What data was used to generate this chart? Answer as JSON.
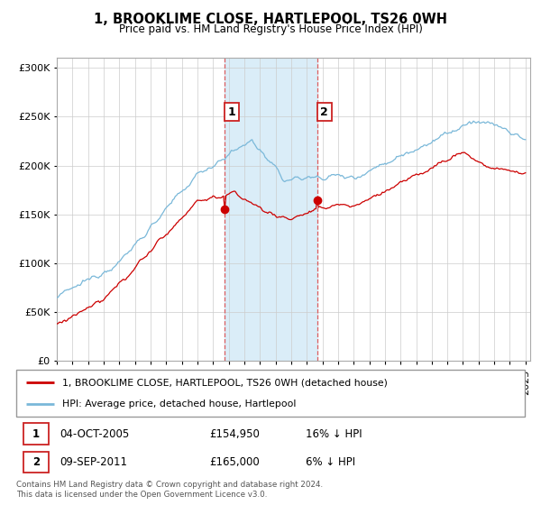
{
  "title": "1, BROOKLIME CLOSE, HARTLEPOOL, TS26 0WH",
  "subtitle": "Price paid vs. HM Land Registry's House Price Index (HPI)",
  "yticks": [
    0,
    50000,
    100000,
    150000,
    200000,
    250000,
    300000
  ],
  "ytick_labels": [
    "£0",
    "£50K",
    "£100K",
    "£150K",
    "£200K",
    "£250K",
    "£300K"
  ],
  "sale1_x": 2005.75,
  "sale1_price": 154950,
  "sale2_x": 2011.67,
  "sale2_price": 165000,
  "shaded_region": [
    2005.75,
    2011.67
  ],
  "legend_line1": "1, BROOKLIME CLOSE, HARTLEPOOL, TS26 0WH (detached house)",
  "legend_line2": "HPI: Average price, detached house, Hartlepool",
  "table_row1": [
    "1",
    "04-OCT-2005",
    "£154,950",
    "16% ↓ HPI"
  ],
  "table_row2": [
    "2",
    "09-SEP-2011",
    "£165,000",
    "6% ↓ HPI"
  ],
  "footer": "Contains HM Land Registry data © Crown copyright and database right 2024.\nThis data is licensed under the Open Government Licence v3.0.",
  "hpi_color": "#7ab8d9",
  "price_color": "#cc0000",
  "shade_color": "#daedf8",
  "grid_color": "#cccccc",
  "vline_color": "#dd4444",
  "background_color": "#ffffff",
  "label_box_color": "#cc2222"
}
